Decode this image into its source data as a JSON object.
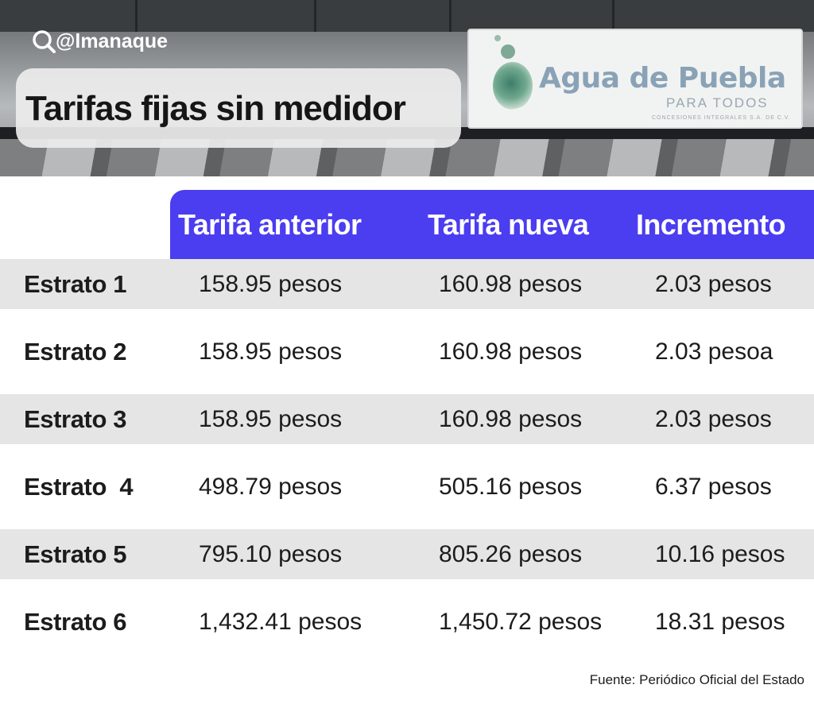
{
  "handle": "@lmanaque",
  "title": "Tarifas fijas sin medidor",
  "sign": {
    "brand": "Agua de Puebla",
    "tagline": "PARA TODOS",
    "legal": "CONCESIONES INTEGRALES S.A. DE C.V."
  },
  "icons": [
    "magnifier-icon"
  ],
  "colors": {
    "accent": "#4b3df0",
    "row_shade": "#e5e5e6",
    "text": "#1c1c1c"
  },
  "chart_data": {
    "type": "table",
    "title": "Tarifas fijas sin medidor",
    "columns": [
      "",
      "Tarifa anterior",
      "Tarifa nueva",
      "Incremento"
    ],
    "rows": [
      {
        "label": "Estrato 1",
        "anterior": "158.95 pesos",
        "nueva": "160.98 pesos",
        "incremento": "2.03 pesos"
      },
      {
        "label": "Estrato 2",
        "anterior": "158.95 pesos",
        "nueva": "160.98 pesos",
        "incremento": "2.03 pesoa"
      },
      {
        "label": "Estrato 3",
        "anterior": "158.95 pesos",
        "nueva": "160.98 pesos",
        "incremento": "2.03 pesos"
      },
      {
        "label": "Estrato  4",
        "anterior": "498.79 pesos",
        "nueva": "505.16 pesos",
        "incremento": "6.37 pesos"
      },
      {
        "label": "Estrato 5",
        "anterior": "795.10 pesos",
        "nueva": "805.26 pesos",
        "incremento": "10.16 pesos"
      },
      {
        "label": "Estrato 6",
        "anterior": "1,432.41 pesos",
        "nueva": "1,450.72 pesos",
        "incremento": "18.31 pesos"
      }
    ],
    "source": "Fuente: Periódico Oficial del Estado"
  }
}
